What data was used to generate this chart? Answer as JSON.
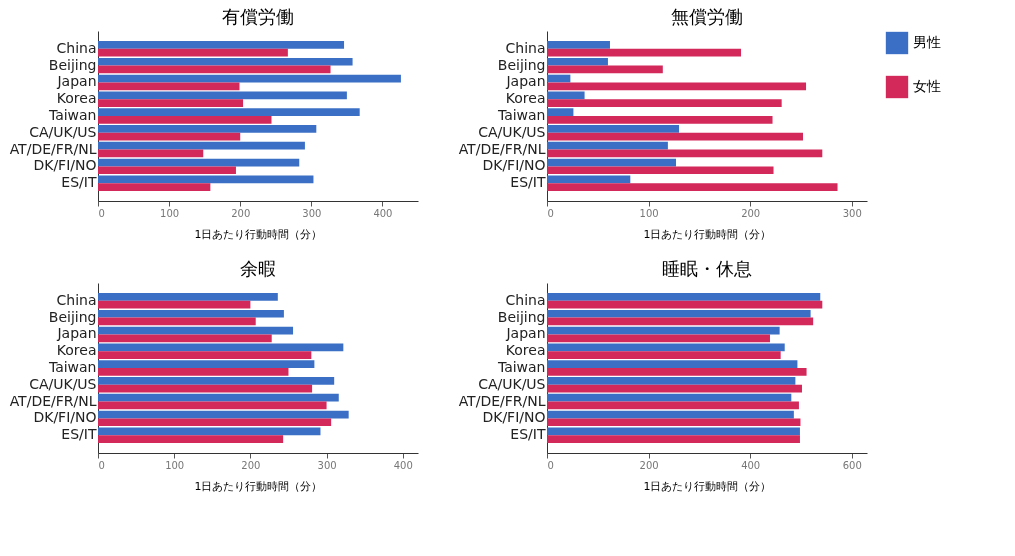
{
  "chart_data": [
    {
      "type": "bar",
      "orientation": "horizontal",
      "title": "有償労働",
      "xlabel": "1日あたり行動時間（分）",
      "categories": [
        "China",
        "Beijing",
        "Japan",
        "Korea",
        "Taiwan",
        "CA/UK/US",
        "AT/DE/FR/NL",
        "DK/FI/NO",
        "ES/IT"
      ],
      "xlim": [
        0,
        450
      ],
      "xticks": [
        0,
        100,
        200,
        300,
        400
      ],
      "legend": "right",
      "series": [
        {
          "name": "男性",
          "color": "#3b6fc6",
          "values": [
            346,
            358,
            426,
            350,
            368,
            307,
            291,
            283,
            303
          ]
        },
        {
          "name": "女性",
          "color": "#d3285a",
          "values": [
            267,
            327,
            199,
            204,
            244,
            200,
            148,
            194,
            158
          ]
        }
      ]
    },
    {
      "type": "bar",
      "orientation": "horizontal",
      "title": "無償労働",
      "xlabel": "1日あたり行動時間（分）",
      "categories": [
        "China",
        "Beijing",
        "Japan",
        "Korea",
        "Taiwan",
        "CA/UK/US",
        "AT/DE/FR/NL",
        "DK/FI/NO",
        "ES/IT"
      ],
      "xlim": [
        0,
        315
      ],
      "xticks": [
        0,
        100,
        200,
        300
      ],
      "legend": "right",
      "series": [
        {
          "name": "男性",
          "color": "#3b6fc6",
          "values": [
            62,
            60,
            23,
            37,
            26,
            130,
            119,
            127,
            82
          ]
        },
        {
          "name": "女性",
          "color": "#d3285a",
          "values": [
            191,
            114,
            255,
            231,
            222,
            252,
            271,
            223,
            286
          ]
        }
      ]
    },
    {
      "type": "bar",
      "orientation": "horizontal",
      "title": "余暇",
      "xlabel": "1日あたり行動時間（分）",
      "categories": [
        "China",
        "Beijing",
        "Japan",
        "Korea",
        "Taiwan",
        "CA/UK/US",
        "AT/DE/FR/NL",
        "DK/FI/NO",
        "ES/IT"
      ],
      "xlim": [
        0,
        420
      ],
      "xticks": [
        0,
        100,
        200,
        300,
        400
      ],
      "legend": "right",
      "series": [
        {
          "name": "男性",
          "color": "#3b6fc6",
          "values": [
            236,
            244,
            256,
            322,
            284,
            310,
            316,
            329,
            292
          ]
        },
        {
          "name": "女性",
          "color": "#d3285a",
          "values": [
            200,
            207,
            228,
            280,
            250,
            281,
            300,
            306,
            243
          ]
        }
      ]
    },
    {
      "type": "bar",
      "orientation": "horizontal",
      "title": "睡眠・休息",
      "xlabel": "1日あたり行動時間（分）",
      "categories": [
        "China",
        "Beijing",
        "Japan",
        "Korea",
        "Taiwan",
        "CA/UK/US",
        "AT/DE/FR/NL",
        "DK/FI/NO",
        "ES/IT"
      ],
      "xlim": [
        0,
        630
      ],
      "xticks": [
        0,
        200,
        400,
        600
      ],
      "legend": "right",
      "series": [
        {
          "name": "男性",
          "color": "#3b6fc6",
          "values": [
            538,
            519,
            458,
            468,
            493,
            489,
            481,
            486,
            498
          ]
        },
        {
          "name": "女性",
          "color": "#d3285a",
          "values": [
            542,
            524,
            439,
            460,
            511,
            502,
            496,
            499,
            498
          ]
        }
      ]
    }
  ]
}
